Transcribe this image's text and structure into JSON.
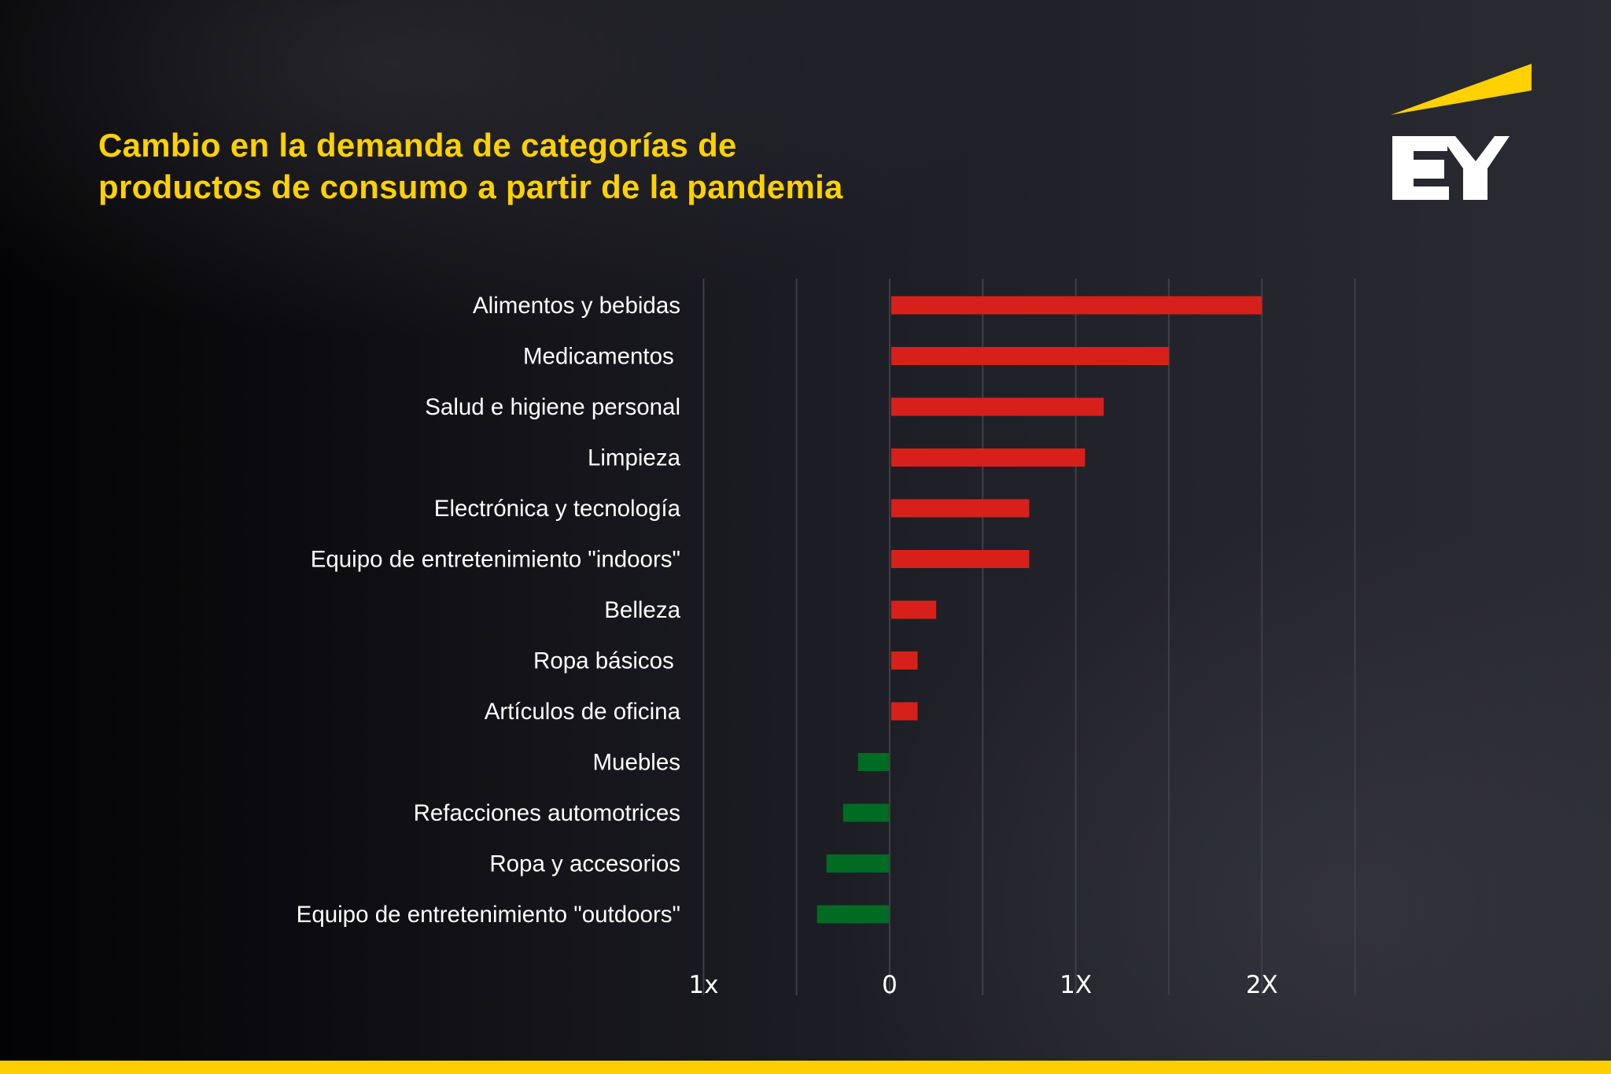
{
  "header": {
    "title_lines": [
      "Cambio en la demanda de categorías de",
      "productos de consumo a partir de la pandemia"
    ]
  },
  "brand": {
    "logo_text": "EY",
    "logo_icon": "ey-beam-logo-icon",
    "colors": {
      "accent_yellow": "#FFD100",
      "logo_white": "#FFFFFF",
      "footer_bar": "#FFCE00"
    }
  },
  "chart_data": {
    "type": "bar",
    "orientation": "horizontal",
    "title": "Cambio en la demanda de categorías de productos de consumo a partir de la pandemia",
    "xlabel": "",
    "ylabel": "",
    "categories": [
      "Alimentos y bebidas",
      "Medicamentos ",
      "Salud e higiene personal",
      "Limpieza",
      "Electrónica y tecnología",
      "Equipo de entretenimiento \"indoors\"",
      "Belleza",
      "Ropa básicos ",
      "Artículos de oficina",
      "Muebles",
      "Refacciones automotrices",
      "Ropa y accesorios",
      "Equipo de entretenimiento \"outdoors\""
    ],
    "values": [
      2.0,
      1.5,
      1.15,
      1.05,
      0.75,
      0.75,
      0.25,
      0.15,
      0.15,
      -0.17,
      -0.25,
      -0.34,
      -0.39
    ],
    "units": "X (multiple of pre-pandemic demand change)",
    "xlim": [
      -1.0,
      2.5
    ],
    "gridlines": [
      -1.0,
      -0.5,
      0,
      0.5,
      1.0,
      1.5,
      2.0,
      2.5
    ],
    "grid": true,
    "ticks": [
      {
        "value": -1,
        "label": "1x"
      },
      {
        "value": 0,
        "label": "0"
      },
      {
        "value": 1,
        "label": "1X"
      },
      {
        "value": 2,
        "label": "2X"
      }
    ],
    "colors": {
      "positive": "#D8201A",
      "negative": "#006B22",
      "gridline": "#3E3F48"
    },
    "legend": "none"
  }
}
